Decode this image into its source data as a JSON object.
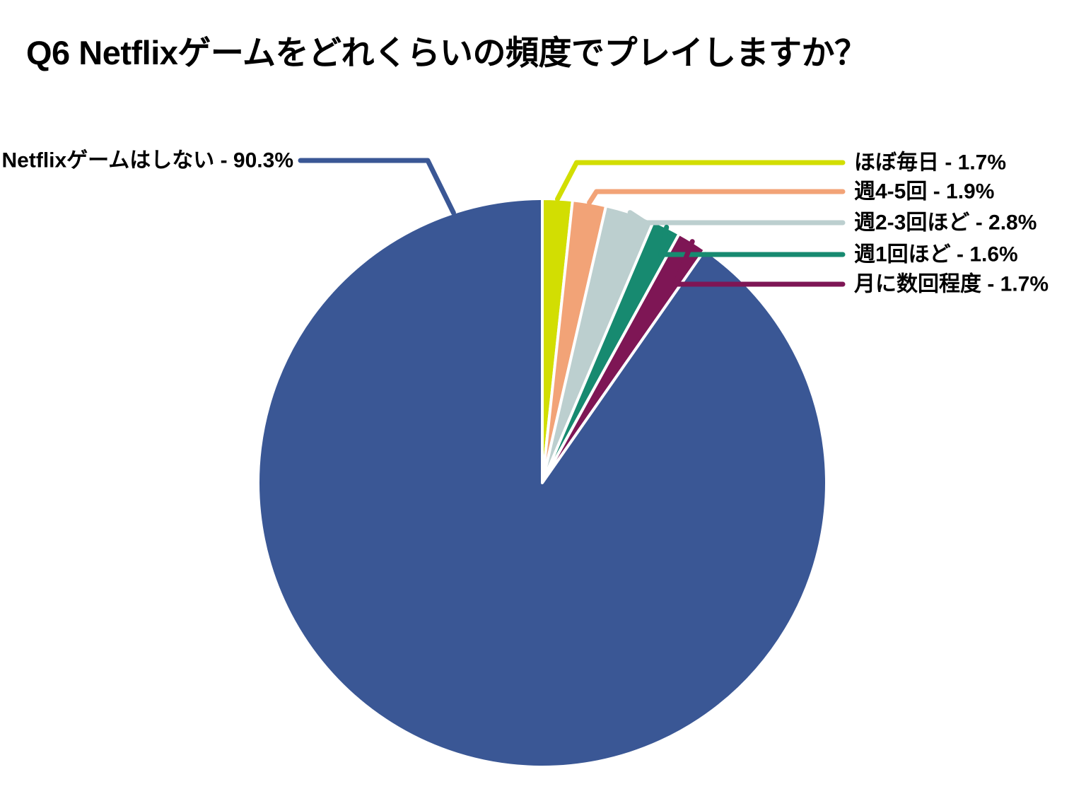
{
  "title": "Q6 Netflixゲームをどれくらいの頻度でプレイしますか？",
  "chart_data": {
    "type": "pie",
    "title": "Q6 Netflixゲームをどれくらいの頻度でプレイしますか？",
    "unit": "%",
    "total": 100.0,
    "start_angle_deg": 0,
    "direction": "clockwise",
    "legend_position": "callout-labels",
    "label_format": "{label} - {value}%",
    "series": [
      {
        "label": "ほぼ毎日",
        "value": 1.7,
        "color": "#d2de02",
        "callout_side": "right",
        "display": "ほぼ毎日 - 1.7%"
      },
      {
        "label": "週4-5回",
        "value": 1.9,
        "color": "#f2a377",
        "callout_side": "right",
        "display": "週4-5回 - 1.9%"
      },
      {
        "label": "週2-3回ほど",
        "value": 2.8,
        "color": "#bccfcf",
        "callout_side": "right",
        "display": "週2-3回ほど - 2.8%"
      },
      {
        "label": "週1回ほど",
        "value": 1.6,
        "color": "#178a70",
        "callout_side": "right",
        "display": "週1回ほど - 1.6%"
      },
      {
        "label": "月に数回程度",
        "value": 1.7,
        "color": "#7e1655",
        "callout_side": "right",
        "display": "月に数回程度 - 1.7%"
      },
      {
        "label": "Netflixゲームはしない",
        "value": 90.3,
        "color": "#3a5795",
        "callout_side": "left",
        "display": "Netflixゲームはしない - 90.3%"
      }
    ],
    "colors": {
      "slice_divider": "#ffffff",
      "text": "#000000",
      "background": "#ffffff"
    }
  }
}
